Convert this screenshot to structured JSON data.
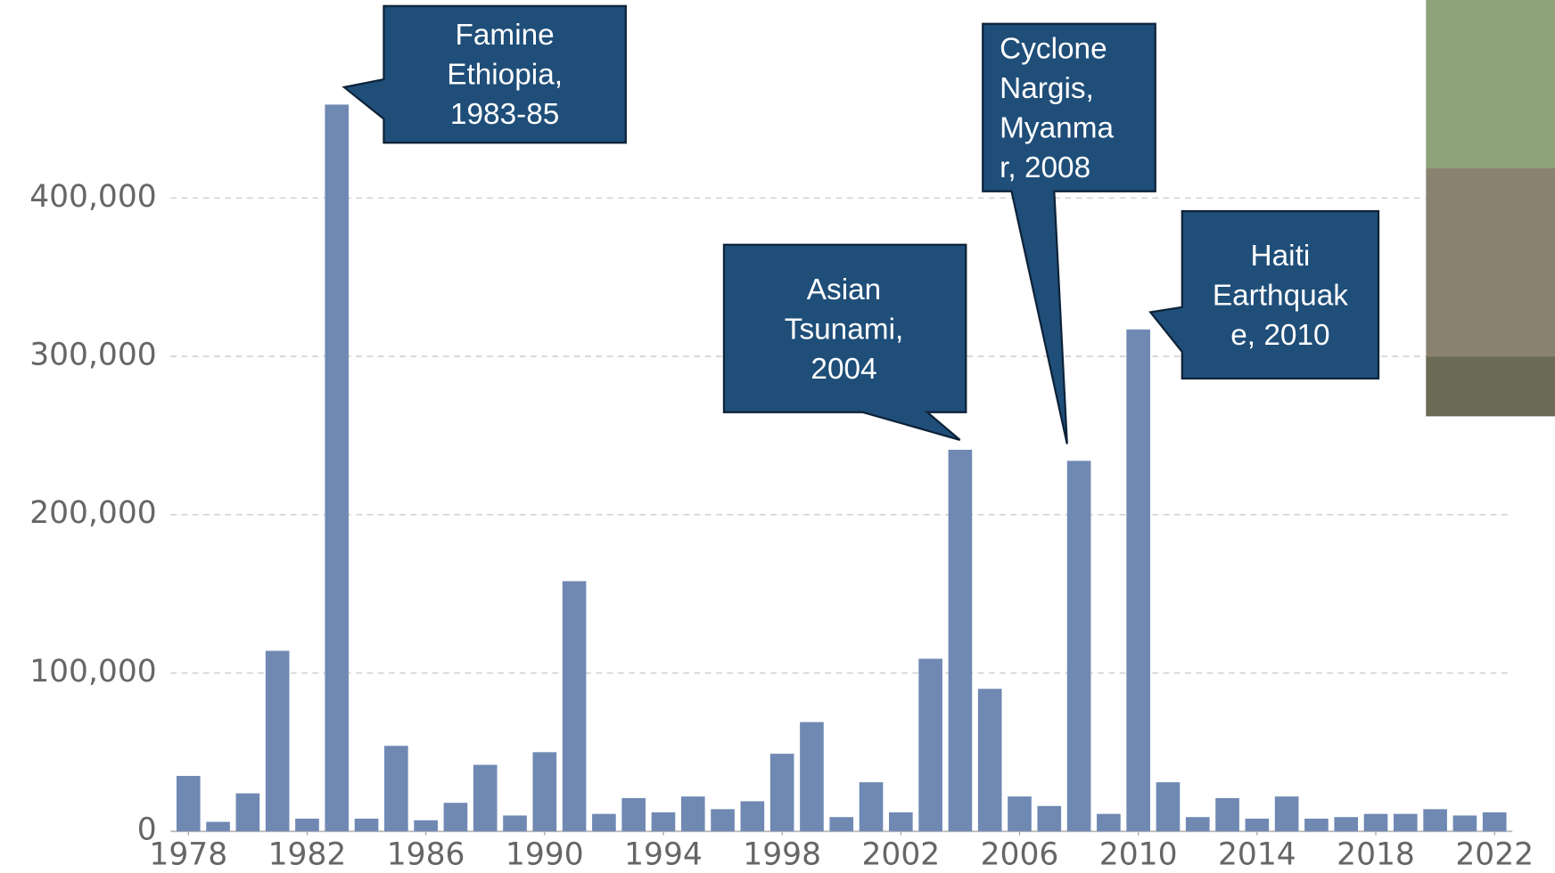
{
  "chart_data": {
    "type": "bar",
    "x": [
      1978,
      1979,
      1980,
      1981,
      1982,
      1983,
      1984,
      1985,
      1986,
      1987,
      1988,
      1989,
      1990,
      1991,
      1992,
      1993,
      1994,
      1995,
      1996,
      1997,
      1998,
      1999,
      2000,
      2001,
      2002,
      2003,
      2004,
      2005,
      2006,
      2007,
      2008,
      2009,
      2010,
      2011,
      2012,
      2013,
      2014,
      2015,
      2016,
      2017,
      2018,
      2019,
      2020,
      2021,
      2022
    ],
    "values": [
      35000,
      6000,
      24000,
      114000,
      8000,
      459000,
      8000,
      54000,
      7000,
      18000,
      42000,
      10000,
      50000,
      158000,
      11000,
      21000,
      12000,
      22000,
      14000,
      19000,
      49000,
      69000,
      9000,
      31000,
      12000,
      109000,
      241000,
      90000,
      22000,
      16000,
      234000,
      11000,
      317000,
      31000,
      9000,
      21000,
      8000,
      22000,
      8000,
      9000,
      11000,
      11000,
      14000,
      10000,
      12000
    ],
    "color": "#6f89b3",
    "xlim": [
      1977.4,
      2022.6
    ],
    "xticks": [
      1978,
      1982,
      1986,
      1990,
      1994,
      1998,
      2002,
      2006,
      2010,
      2014,
      2018,
      2022
    ],
    "ylim": [
      0,
      500000
    ],
    "yticks": [
      {
        "value": 0,
        "label": "0"
      },
      {
        "value": 100000,
        "label": "100,000"
      },
      {
        "value": 200000,
        "label": "200,000"
      },
      {
        "value": 300000,
        "label": "300,000"
      },
      {
        "value": 400000,
        "label": "400,000"
      }
    ],
    "grid": true,
    "annotations": [
      {
        "lines": [
          "Famine",
          "Ethiopia,",
          "1983-85"
        ]
      },
      {
        "lines": [
          "Asian",
          "Tsunami,",
          "2004"
        ]
      },
      {
        "lines": [
          "Cyclone",
          "Nargis,",
          "Myanma",
          "r, 2008"
        ]
      },
      {
        "lines": [
          "Haiti",
          "Earthquak",
          "e, 2010"
        ]
      }
    ]
  }
}
